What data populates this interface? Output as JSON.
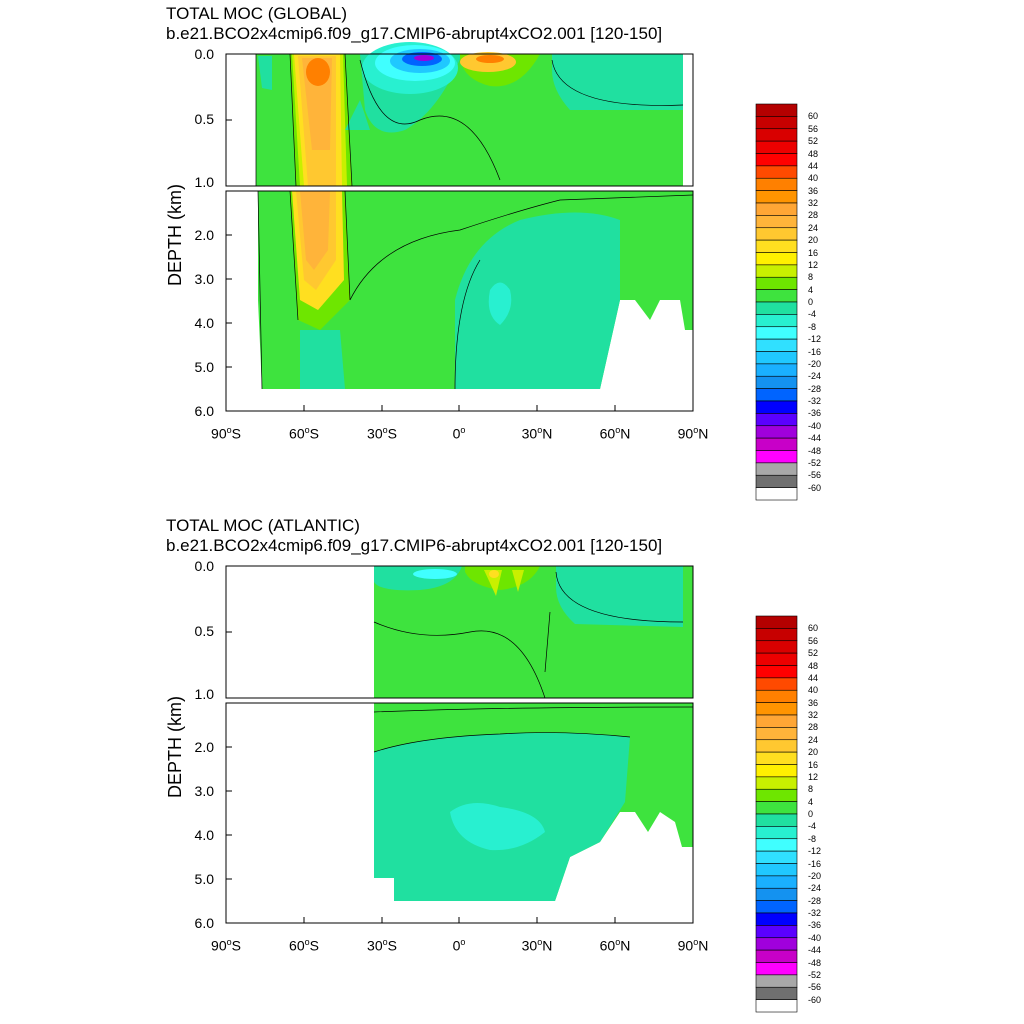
{
  "colors": {
    "levels": [
      "#b40000",
      "#c70000",
      "#d90000",
      "#ec0000",
      "#ff0000",
      "#ff4a00",
      "#ff8000",
      "#ff9400",
      "#ffa635",
      "#ffb43a",
      "#ffc830",
      "#ffdf20",
      "#fff000",
      "#c8f000",
      "#6ee600",
      "#3ee33e",
      "#20e0a0",
      "#28f0d0",
      "#40ffff",
      "#30e0ff",
      "#20c8ff",
      "#1ab0ff",
      "#1492f0",
      "#0064ff",
      "#0000ff",
      "#5a00ff",
      "#a000dc",
      "#c800c8",
      "#ff00ff",
      "#a8a8a8",
      "#707070",
      "#ffffff"
    ]
  },
  "panels": [
    {
      "title": "TOTAL MOC (GLOBAL)",
      "subtitle": "b.e21.BCO2x4cmip6.f09_g17.CMIP6-abrupt4xCO2.001 [120-150]",
      "ylabel": "DEPTH (km)"
    },
    {
      "title": "TOTAL MOC (ATLANTIC)",
      "subtitle": "b.e21.BCO2x4cmip6.f09_g17.CMIP6-abrupt4xCO2.001 [120-150]",
      "ylabel": "DEPTH (km)"
    }
  ],
  "axis": {
    "ytop": [
      "0.0",
      "0.5",
      "1.0"
    ],
    "ybot": [
      "2.0",
      "3.0",
      "4.0",
      "5.0",
      "6.0"
    ],
    "x": [
      "90",
      "60",
      "30",
      "0",
      "30",
      "60",
      "90"
    ],
    "xsuffix": [
      "S",
      "S",
      "S",
      "",
      "N",
      "N",
      "N"
    ],
    "deg": "o"
  },
  "colorbar": {
    "labels": [
      "60",
      "56",
      "52",
      "48",
      "44",
      "40",
      "36",
      "32",
      "28",
      "24",
      "20",
      "16",
      "12",
      "8",
      "4",
      "0",
      "-4",
      "-8",
      "-12",
      "-16",
      "-20",
      "-24",
      "-28",
      "-32",
      "-36",
      "-40",
      "-44",
      "-48",
      "-52",
      "-56",
      "-60"
    ]
  },
  "chart_data": [
    {
      "type": "heatmap",
      "title": "TOTAL MOC (GLOBAL)",
      "subtitle": "b.e21.BCO2x4cmip6.f09_g17.CMIP6-abrupt4xCO2.001 [120-150]",
      "xlabel": "",
      "ylabel": "DEPTH (km)",
      "xlim": [
        -90,
        90
      ],
      "ylim_upper": [
        0.0,
        1.0
      ],
      "ylim_lower": [
        1.0,
        6.0
      ],
      "contour_levels": [
        60,
        56,
        52,
        48,
        44,
        40,
        36,
        32,
        28,
        24,
        20,
        16,
        12,
        8,
        4,
        0,
        -4,
        -8,
        -12,
        -16,
        -20,
        -24,
        -28,
        -32,
        -36,
        -40,
        -44,
        -48,
        -52,
        -56,
        -60
      ],
      "features": [
        {
          "lat": -52,
          "depth": 0.1,
          "value": 40
        },
        {
          "lat": -52,
          "depth": 2.5,
          "value": 28
        },
        {
          "lat": -13,
          "depth": 0.0,
          "value": -40
        },
        {
          "lat": 10,
          "depth": 0.0,
          "value": 32
        },
        {
          "lat": 25,
          "depth": 3.0,
          "value": -4
        },
        {
          "lat": 48,
          "depth": 0.2,
          "value": -4
        }
      ]
    },
    {
      "type": "heatmap",
      "title": "TOTAL MOC (ATLANTIC)",
      "subtitle": "b.e21.BCO2x4cmip6.f09_g17.CMIP6-abrupt4xCO2.001 [120-150]",
      "xlabel": "",
      "ylabel": "DEPTH (km)",
      "xlim": [
        -90,
        90
      ],
      "ylim_upper": [
        0.0,
        1.0
      ],
      "ylim_lower": [
        1.0,
        6.0
      ],
      "contour_levels": [
        60,
        56,
        52,
        48,
        44,
        40,
        36,
        32,
        28,
        24,
        20,
        16,
        12,
        8,
        4,
        0,
        -4,
        -8,
        -12,
        -16,
        -20,
        -24,
        -28,
        -32,
        -36,
        -40,
        -44,
        -48,
        -52,
        -56,
        -60
      ],
      "features": [
        {
          "lat": -23,
          "depth": 0.05,
          "value": -8
        },
        {
          "lat": 15,
          "depth": 0.05,
          "value": 16
        },
        {
          "lat": 22,
          "depth": 0.05,
          "value": 12
        },
        {
          "lat": 13,
          "depth": 3.7,
          "value": -8
        },
        {
          "lat": 48,
          "depth": 0.2,
          "value": -4
        }
      ]
    }
  ]
}
